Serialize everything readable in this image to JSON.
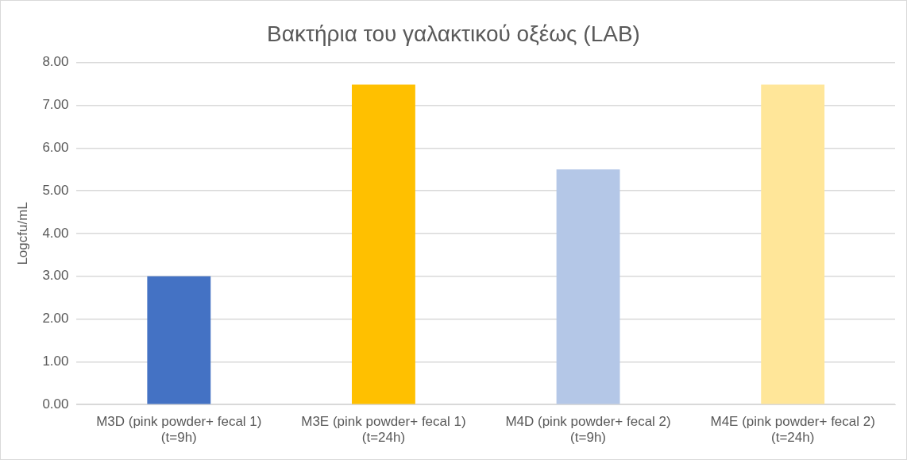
{
  "chart_data": {
    "type": "bar",
    "title": "Βακτήρια του γαλακτικού οξέως (LAB)",
    "ylabel": "Logcfu/mL",
    "categories": [
      "M3D (pink powder+ fecal 1) (t=9h)",
      "M3E (pink powder+ fecal 1) (t=24h)",
      "M4D (pink powder+ fecal 2) (t=9h)",
      "M4E (pink powder+ fecal 2) (t=24h)"
    ],
    "values": [
      3.0,
      7.48,
      5.5,
      7.48
    ],
    "colors": [
      "#4472c4",
      "#ffc000",
      "#b4c7e7",
      "#ffe699"
    ],
    "ylim": [
      0,
      8
    ],
    "yticks": [
      {
        "value": 0,
        "label": "0.00"
      },
      {
        "value": 1,
        "label": "1.00"
      },
      {
        "value": 2,
        "label": "2.00"
      },
      {
        "value": 3,
        "label": "3.00"
      },
      {
        "value": 4,
        "label": "4.00"
      },
      {
        "value": 5,
        "label": "5.00"
      },
      {
        "value": 6,
        "label": "6.00"
      },
      {
        "value": 7,
        "label": "7.00"
      },
      {
        "value": 8,
        "label": "8.00"
      }
    ],
    "grid": "y",
    "legend": false
  }
}
